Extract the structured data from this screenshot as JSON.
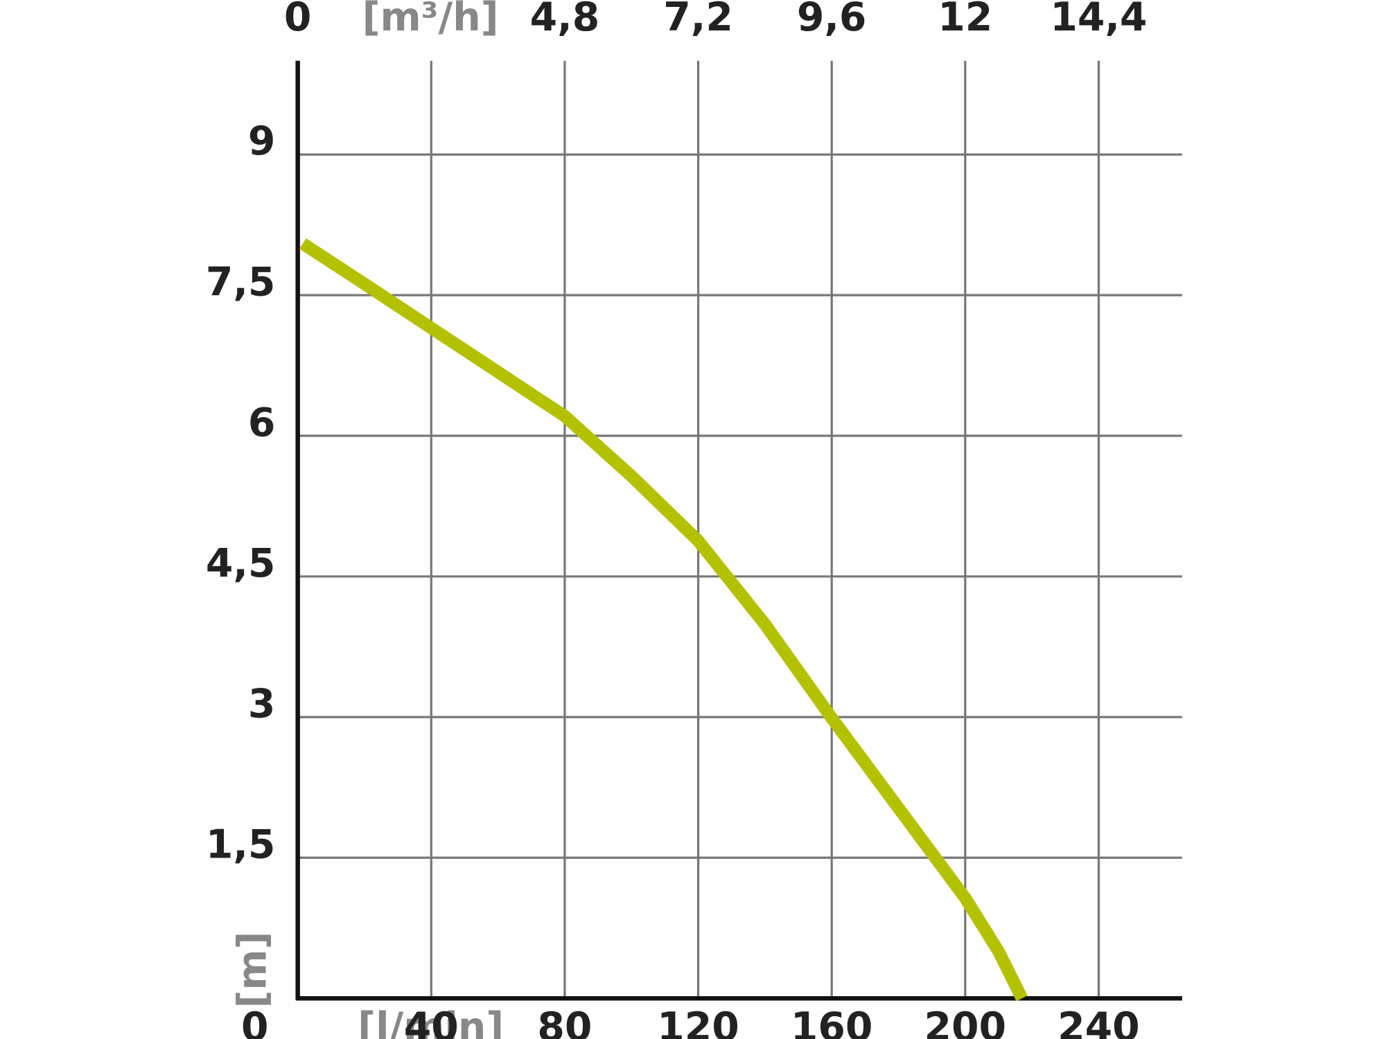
{
  "chart_data": {
    "type": "line",
    "x_label": "[l/min]",
    "y_label": "[m]",
    "x2_label": "[m³/h]",
    "xlim": [
      0,
      265
    ],
    "xticks": [
      0,
      40,
      80,
      120,
      160,
      200,
      240
    ],
    "x2lim": [
      0,
      15.9
    ],
    "x2ticks": [
      0,
      {
        "value": 4.8,
        "label": "4,8"
      },
      {
        "value": 7.2,
        "label": "7,2"
      },
      {
        "value": 9.6,
        "label": "9,6"
      },
      12,
      {
        "value": 14.4,
        "label": "14,4"
      }
    ],
    "ylim": [
      0,
      10
    ],
    "yticks": [
      {
        "value": 1.5,
        "label": "1,5"
      },
      3,
      {
        "value": 4.5,
        "label": "4,5"
      },
      6,
      {
        "value": 7.5,
        "label": "7,5"
      },
      9
    ],
    "grid": true,
    "series": [
      {
        "color": "#b3c100",
        "x": [
          1.5,
          20,
          40,
          80,
          100,
          120,
          140,
          160,
          180,
          200,
          210,
          217
        ],
        "values": [
          8.05,
          7.62,
          7.15,
          6.21,
          5.57,
          4.88,
          3.99,
          2.99,
          2.03,
          1.07,
          0.5,
          0
        ]
      }
    ]
  }
}
